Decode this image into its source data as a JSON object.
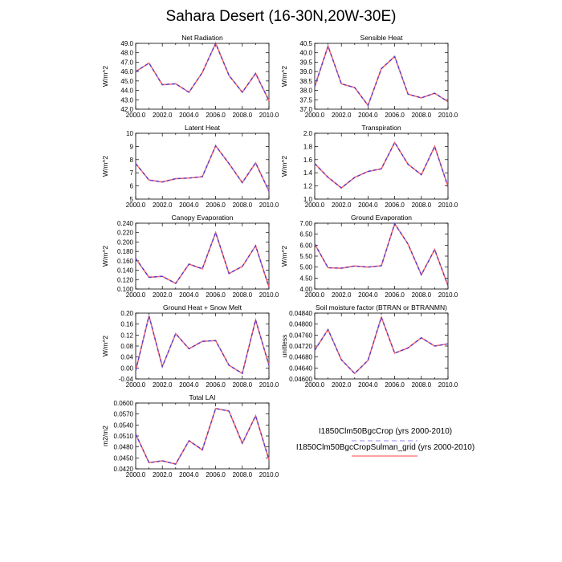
{
  "title": "Sahara Desert (16-30N,20W-30E)",
  "line_colors": {
    "case1": "#ff6a6a",
    "case2": "#4b3bd8",
    "case1_dash": "#b8b0ee"
  },
  "legend": [
    {
      "label": "I1850Clm50BgcCrop (yrs 2000-2010)",
      "style": "dashed",
      "color": "#b8b0ee"
    },
    {
      "label": "I1850Clm50BgcCropSulman_grid (yrs 2000-2010)",
      "style": "solid",
      "color": "#ff6a6a"
    }
  ],
  "chart_data": [
    {
      "type": "line",
      "title": "Net Radiation",
      "ylabel": "W/m^2",
      "x": [
        2000,
        2001,
        2002,
        2003,
        2004,
        2005,
        2006,
        2007,
        2008,
        2009,
        2010
      ],
      "xlim": [
        2000,
        2010
      ],
      "xticks": [
        "2000.0",
        "2002.0",
        "2004.0",
        "2006.0",
        "2008.0",
        "2010.0"
      ],
      "ylim": [
        42.0,
        49.0
      ],
      "yticks": [
        "42.0",
        "43.0",
        "44.0",
        "45.0",
        "46.0",
        "47.0",
        "48.0",
        "49.0"
      ],
      "series": [
        {
          "values": [
            46.0,
            46.9,
            44.6,
            44.7,
            43.8,
            45.9,
            49.0,
            45.6,
            43.8,
            45.8,
            42.9
          ]
        },
        {
          "values": [
            46.0,
            46.9,
            44.6,
            44.7,
            43.8,
            45.9,
            49.0,
            45.6,
            43.8,
            45.8,
            42.9
          ]
        }
      ]
    },
    {
      "type": "line",
      "title": "Sensible Heat",
      "ylabel": "W/m^2",
      "x": [
        2000,
        2001,
        2002,
        2003,
        2004,
        2005,
        2006,
        2007,
        2008,
        2009,
        2010
      ],
      "xlim": [
        2000,
        2010
      ],
      "xticks": [
        "2000.0",
        "2002.0",
        "2004.0",
        "2006.0",
        "2008.0",
        "2010.0"
      ],
      "ylim": [
        37.0,
        40.5
      ],
      "yticks": [
        "37.0",
        "37.5",
        "38.0",
        "38.5",
        "39.0",
        "39.5",
        "40.0",
        "40.5"
      ],
      "series": [
        {
          "values": [
            38.2,
            40.35,
            38.35,
            38.15,
            37.2,
            39.15,
            39.8,
            37.8,
            37.6,
            37.85,
            37.4
          ]
        },
        {
          "values": [
            38.2,
            40.35,
            38.35,
            38.15,
            37.2,
            39.15,
            39.8,
            37.8,
            37.6,
            37.85,
            37.4
          ]
        }
      ]
    },
    {
      "type": "line",
      "title": "Latent Heat",
      "ylabel": "W/m^2",
      "x": [
        2000,
        2001,
        2002,
        2003,
        2004,
        2005,
        2006,
        2007,
        2008,
        2009,
        2010
      ],
      "xlim": [
        2000,
        2010
      ],
      "xticks": [
        "2000.0",
        "2002.0",
        "2004.0",
        "2006.0",
        "2008.0",
        "2010.0"
      ],
      "ylim": [
        5,
        10
      ],
      "yticks": [
        "5",
        "6",
        "7",
        "8",
        "9",
        "10"
      ],
      "series": [
        {
          "values": [
            7.7,
            6.45,
            6.3,
            6.55,
            6.6,
            6.7,
            9.05,
            7.7,
            6.25,
            7.75,
            5.6
          ]
        },
        {
          "values": [
            7.7,
            6.45,
            6.3,
            6.55,
            6.6,
            6.7,
            9.05,
            7.7,
            6.25,
            7.75,
            5.6
          ]
        }
      ]
    },
    {
      "type": "line",
      "title": "Transpiration",
      "ylabel": "W/m^2",
      "x": [
        2000,
        2001,
        2002,
        2003,
        2004,
        2005,
        2006,
        2007,
        2008,
        2009,
        2010
      ],
      "xlim": [
        2000,
        2010
      ],
      "xticks": [
        "2000.0",
        "2002.0",
        "2004.0",
        "2006.0",
        "2008.0",
        "2010.0"
      ],
      "ylim": [
        1.0,
        2.0
      ],
      "yticks": [
        "1.0",
        "1.2",
        "1.4",
        "1.6",
        "1.8",
        "2.0"
      ],
      "series": [
        {
          "values": [
            1.54,
            1.33,
            1.17,
            1.33,
            1.42,
            1.46,
            1.86,
            1.53,
            1.37,
            1.8,
            1.19
          ]
        },
        {
          "values": [
            1.54,
            1.33,
            1.17,
            1.33,
            1.42,
            1.46,
            1.86,
            1.53,
            1.37,
            1.8,
            1.19
          ]
        }
      ]
    },
    {
      "type": "line",
      "title": "Canopy Evaporation",
      "ylabel": "W/m^2",
      "x": [
        2000,
        2001,
        2002,
        2003,
        2004,
        2005,
        2006,
        2007,
        2008,
        2009,
        2010
      ],
      "xlim": [
        2000,
        2010
      ],
      "xticks": [
        "2000.0",
        "2002.0",
        "2004.0",
        "2006.0",
        "2008.0",
        "2010.0"
      ],
      "ylim": [
        0.1,
        0.24
      ],
      "yticks": [
        "0.100",
        "0.120",
        "0.140",
        "0.160",
        "0.180",
        "0.200",
        "0.220",
        "0.240"
      ],
      "series": [
        {
          "values": [
            0.165,
            0.125,
            0.127,
            0.112,
            0.153,
            0.143,
            0.22,
            0.133,
            0.148,
            0.192,
            0.104
          ]
        },
        {
          "values": [
            0.165,
            0.125,
            0.127,
            0.112,
            0.153,
            0.143,
            0.22,
            0.133,
            0.148,
            0.192,
            0.104
          ]
        }
      ]
    },
    {
      "type": "line",
      "title": "Ground Evaporation",
      "ylabel": "W/m^2",
      "x": [
        2000,
        2001,
        2002,
        2003,
        2004,
        2005,
        2006,
        2007,
        2008,
        2009,
        2010
      ],
      "xlim": [
        2000,
        2010
      ],
      "xticks": [
        "2000.0",
        "2002.0",
        "2004.0",
        "2006.0",
        "2008.0",
        "2010.0"
      ],
      "ylim": [
        4.0,
        7.0
      ],
      "yticks": [
        "4.00",
        "4.50",
        "5.00",
        "5.50",
        "6.00",
        "6.50",
        "7.00"
      ],
      "series": [
        {
          "values": [
            6.05,
            4.97,
            4.95,
            5.05,
            5.0,
            5.06,
            6.98,
            6.05,
            4.65,
            5.8,
            4.15
          ]
        },
        {
          "values": [
            6.05,
            4.97,
            4.95,
            5.05,
            5.0,
            5.06,
            6.98,
            6.05,
            4.65,
            5.8,
            4.15
          ]
        }
      ]
    },
    {
      "type": "line",
      "title": "Ground Heat + Snow Melt",
      "ylabel": "W/m^2",
      "x": [
        2000,
        2001,
        2002,
        2003,
        2004,
        2005,
        2006,
        2007,
        2008,
        2009,
        2010
      ],
      "xlim": [
        2000,
        2010
      ],
      "xticks": [
        "2000.0",
        "2002.0",
        "2004.0",
        "2006.0",
        "2008.0",
        "2010.0"
      ],
      "ylim": [
        -0.04,
        0.2
      ],
      "yticks": [
        "-0.04",
        "0.00",
        "0.04",
        "0.08",
        "0.12",
        "0.16",
        "0.20"
      ],
      "series": [
        {
          "values": [
            -0.01,
            0.19,
            0.005,
            0.125,
            0.07,
            0.097,
            0.1,
            0.01,
            -0.02,
            0.175,
            0.01
          ]
        },
        {
          "values": [
            -0.01,
            0.19,
            0.005,
            0.125,
            0.07,
            0.097,
            0.1,
            0.01,
            -0.02,
            0.175,
            0.01
          ]
        }
      ]
    },
    {
      "type": "line",
      "title": "Soil moisture factor (BTRAN or BTRANMN)",
      "ylabel": "unitless",
      "x": [
        2000,
        2001,
        2002,
        2003,
        2004,
        2005,
        2006,
        2007,
        2008,
        2009,
        2010
      ],
      "xlim": [
        2000,
        2010
      ],
      "xticks": [
        "2000.0",
        "2002.0",
        "2004.0",
        "2006.0",
        "2008.0",
        "2010.0"
      ],
      "ylim": [
        0.046,
        0.0484
      ],
      "yticks": [
        "0.04600",
        "0.04640",
        "0.04680",
        "0.04720",
        "0.04760",
        "0.04800",
        "0.04840"
      ],
      "series": [
        {
          "values": [
            0.04705,
            0.0478,
            0.0467,
            0.0462,
            0.04668,
            0.04825,
            0.04694,
            0.04713,
            0.0475,
            0.0472,
            0.04728
          ]
        },
        {
          "values": [
            0.04705,
            0.0478,
            0.0467,
            0.0462,
            0.04668,
            0.04825,
            0.04694,
            0.04713,
            0.0475,
            0.0472,
            0.04728
          ]
        }
      ]
    },
    {
      "type": "line",
      "title": "Total LAI",
      "ylabel": "m2/m2",
      "x": [
        2000,
        2001,
        2002,
        2003,
        2004,
        2005,
        2006,
        2007,
        2008,
        2009,
        2010
      ],
      "xlim": [
        2000,
        2010
      ],
      "xticks": [
        "2000.0",
        "2002.0",
        "2004.0",
        "2006.0",
        "2008.0",
        "2010.0"
      ],
      "ylim": [
        0.042,
        0.06
      ],
      "yticks": [
        "0.0420",
        "0.0450",
        "0.0480",
        "0.0510",
        "0.0540",
        "0.0570",
        "0.0600"
      ],
      "series": [
        {
          "values": [
            0.0515,
            0.0437,
            0.0442,
            0.0433,
            0.0497,
            0.0472,
            0.0585,
            0.0578,
            0.049,
            0.0565,
            0.0445
          ]
        },
        {
          "values": [
            0.0515,
            0.0437,
            0.0442,
            0.0433,
            0.0497,
            0.0472,
            0.0585,
            0.0578,
            0.049,
            0.0565,
            0.0445
          ]
        }
      ]
    }
  ]
}
